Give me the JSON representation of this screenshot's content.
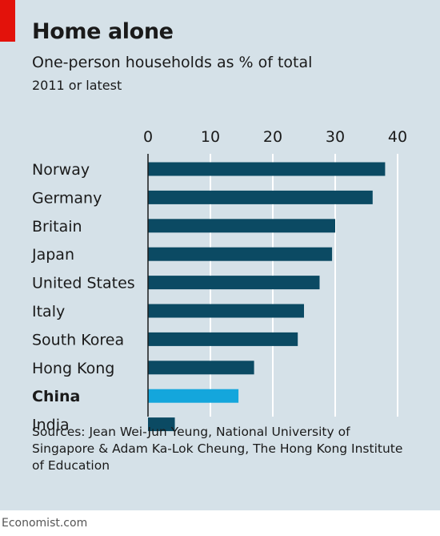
{
  "header": {
    "title": "Home alone",
    "subtitle": "One-person households as % of total",
    "note": "2011 or latest"
  },
  "source": "Sources: Jean Wei-Jun Yeung, National University of Singapore & Adam Ka-Lok Cheung, The Hong Kong Institute of Education",
  "footer": "Economist.com",
  "colors": {
    "bar": "#0b4a63",
    "highlight": "#14a6dc",
    "background": "#d5e1e8",
    "brand": "#e3120b"
  },
  "chart_data": {
    "type": "bar",
    "orientation": "horizontal",
    "title": "Home alone",
    "subtitle": "One-person households as % of total",
    "categories": [
      "Norway",
      "Germany",
      "Britain",
      "Japan",
      "United States",
      "Italy",
      "South Korea",
      "Hong Kong",
      "China",
      "India"
    ],
    "values": [
      38,
      36,
      30,
      29.5,
      27.5,
      25,
      24,
      17,
      14.5,
      4.3
    ],
    "highlight": "China",
    "xticks": [
      0,
      10,
      20,
      30,
      40
    ],
    "xlim": [
      0,
      40
    ],
    "grid": true,
    "xaxis_position": "top"
  }
}
